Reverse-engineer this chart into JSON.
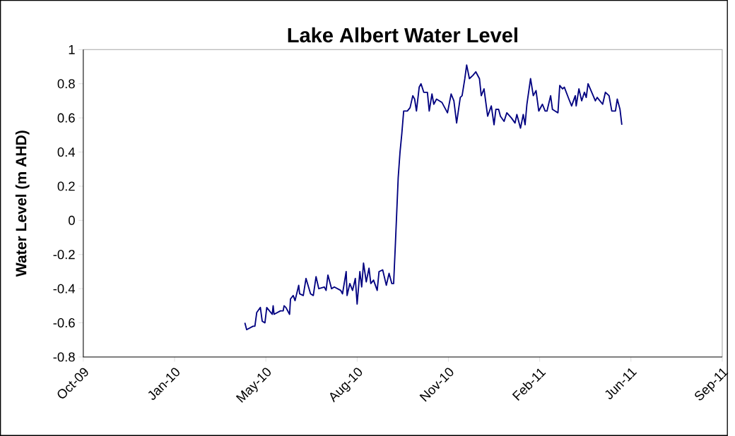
{
  "chart_data": {
    "type": "line",
    "title": "Lake Albert Water Level",
    "ylabel": "Water Level (m AHD)",
    "xlim": [
      "2009-10-14",
      "2011-09-14"
    ],
    "xticks": [
      {
        "value": "2009-10-14",
        "label": "Oct-09"
      },
      {
        "value": "2010-01-22",
        "label": "Jan-10"
      },
      {
        "value": "2010-05-02",
        "label": "May-10"
      },
      {
        "value": "2010-08-10",
        "label": "Aug-10"
      },
      {
        "value": "2010-11-18",
        "label": "Nov-10"
      },
      {
        "value": "2011-02-26",
        "label": "Feb-11"
      },
      {
        "value": "2011-06-06",
        "label": "Jun-11"
      },
      {
        "value": "2011-09-14",
        "label": "Sep-11"
      }
    ],
    "ylim": [
      -0.8,
      1
    ],
    "yticks": [
      -0.8,
      -0.6,
      -0.4,
      -0.2,
      0,
      0.2,
      0.4,
      0.6,
      0.8,
      1
    ],
    "grid": false,
    "marker": "none",
    "line_style": "solid",
    "x": [
      "2010-04-09",
      "2010-04-11",
      "2010-04-18",
      "2010-04-20",
      "2010-04-22",
      "2010-04-26",
      "2010-04-28",
      "2010-05-01",
      "2010-05-03",
      "2010-05-09",
      "2010-05-10",
      "2010-05-11",
      "2010-05-18",
      "2010-05-21",
      "2010-05-22",
      "2010-05-24",
      "2010-05-28",
      "2010-05-29",
      "2010-06-01",
      "2010-06-03",
      "2010-06-07",
      "2010-06-08",
      "2010-06-12",
      "2010-06-15",
      "2010-06-20",
      "2010-06-23",
      "2010-06-26",
      "2010-06-29",
      "2010-07-05",
      "2010-07-07",
      "2010-07-09",
      "2010-07-13",
      "2010-07-16",
      "2010-07-23",
      "2010-07-25",
      "2010-07-29",
      "2010-07-30",
      "2010-08-02",
      "2010-08-05",
      "2010-08-08",
      "2010-08-10",
      "2010-08-13",
      "2010-08-15",
      "2010-08-17",
      "2010-08-20",
      "2010-08-23",
      "2010-08-25",
      "2010-08-28",
      "2010-09-01",
      "2010-09-03",
      "2010-09-07",
      "2010-09-11",
      "2010-09-14",
      "2010-09-17",
      "2010-09-19",
      "2010-09-21",
      "2010-09-24",
      "2010-09-26",
      "2010-09-28",
      "2010-09-30",
      "2010-10-04",
      "2010-10-07",
      "2010-10-10",
      "2010-10-12",
      "2010-10-14",
      "2010-10-17",
      "2010-10-19",
      "2010-10-22",
      "2010-10-26",
      "2010-10-28",
      "2010-10-31",
      "2010-11-02",
      "2010-11-05",
      "2010-11-11",
      "2010-11-17",
      "2010-11-21",
      "2010-11-24",
      "2010-11-27",
      "2010-12-01",
      "2010-12-03",
      "2010-12-06",
      "2010-12-08",
      "2010-12-11",
      "2010-12-15",
      "2010-12-18",
      "2010-12-22",
      "2010-12-24",
      "2010-12-27",
      "2010-12-31",
      "2011-01-04",
      "2011-01-07",
      "2011-01-09",
      "2011-01-12",
      "2011-01-14",
      "2011-01-18",
      "2011-01-21",
      "2011-01-26",
      "2011-01-30",
      "2011-02-01",
      "2011-02-05",
      "2011-02-08",
      "2011-02-10",
      "2011-02-12",
      "2011-02-16",
      "2011-02-19",
      "2011-02-22",
      "2011-02-25",
      "2011-03-01",
      "2011-03-04",
      "2011-03-06",
      "2011-03-10",
      "2011-03-12",
      "2011-03-15",
      "2011-03-18",
      "2011-03-20",
      "2011-03-23",
      "2011-03-25",
      "2011-03-30",
      "2011-04-02",
      "2011-04-06",
      "2011-04-07",
      "2011-04-10",
      "2011-04-13",
      "2011-04-16",
      "2011-04-18",
      "2011-04-20",
      "2011-04-24",
      "2011-04-28",
      "2011-04-30",
      "2011-05-06",
      "2011-05-09",
      "2011-05-13",
      "2011-05-16",
      "2011-05-20",
      "2011-05-22",
      "2011-05-25",
      "2011-05-27"
    ],
    "series": [
      {
        "color": "#000080",
        "values": [
          -0.6,
          -0.64,
          -0.62,
          -0.62,
          -0.54,
          -0.51,
          -0.59,
          -0.6,
          -0.51,
          -0.55,
          -0.5,
          -0.55,
          -0.53,
          -0.53,
          -0.5,
          -0.51,
          -0.55,
          -0.46,
          -0.44,
          -0.47,
          -0.38,
          -0.43,
          -0.44,
          -0.34,
          -0.43,
          -0.44,
          -0.33,
          -0.4,
          -0.39,
          -0.41,
          -0.32,
          -0.4,
          -0.39,
          -0.41,
          -0.43,
          -0.3,
          -0.44,
          -0.37,
          -0.41,
          -0.34,
          -0.49,
          -0.3,
          -0.39,
          -0.25,
          -0.36,
          -0.28,
          -0.37,
          -0.35,
          -0.41,
          -0.3,
          -0.29,
          -0.38,
          -0.31,
          -0.37,
          -0.37,
          -0.13,
          0.25,
          0.4,
          0.51,
          0.64,
          0.64,
          0.66,
          0.73,
          0.71,
          0.64,
          0.78,
          0.8,
          0.75,
          0.75,
          0.64,
          0.74,
          0.68,
          0.71,
          0.69,
          0.63,
          0.74,
          0.7,
          0.57,
          0.72,
          0.73,
          0.83,
          0.91,
          0.83,
          0.85,
          0.87,
          0.83,
          0.73,
          0.77,
          0.61,
          0.67,
          0.56,
          0.65,
          0.65,
          0.61,
          0.58,
          0.63,
          0.6,
          0.57,
          0.62,
          0.54,
          0.62,
          0.56,
          0.68,
          0.83,
          0.73,
          0.76,
          0.64,
          0.68,
          0.64,
          0.64,
          0.73,
          0.65,
          0.64,
          0.63,
          0.79,
          0.77,
          0.78,
          0.71,
          0.67,
          0.73,
          0.67,
          0.77,
          0.7,
          0.75,
          0.72,
          0.8,
          0.75,
          0.7,
          0.72,
          0.68,
          0.75,
          0.73,
          0.64,
          0.64,
          0.71,
          0.65,
          0.56
        ]
      }
    ]
  }
}
